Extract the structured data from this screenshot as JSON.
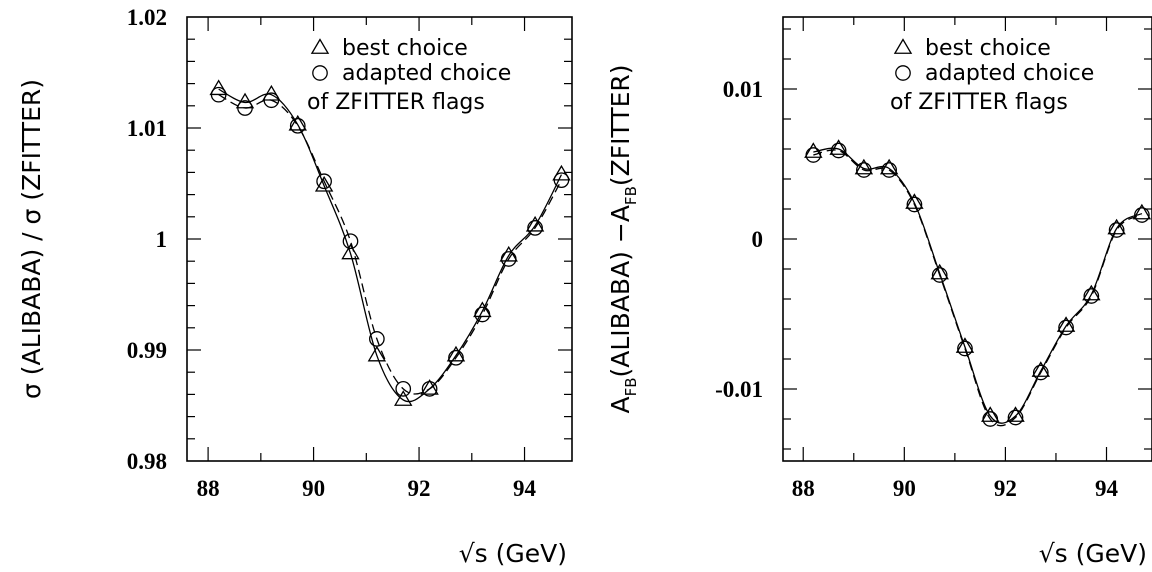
{
  "chart_data": [
    {
      "type": "scatter",
      "xlabel": "√s (GeV)",
      "ylabel": "σ (ALIBABA) / σ (ZFITTER)",
      "xlim": [
        87.6,
        94.9
      ],
      "ylim": [
        0.98,
        1.02
      ],
      "x_ticks": [
        88,
        90,
        92,
        94
      ],
      "x_tick_labels": [
        "88",
        "90",
        "92",
        "94"
      ],
      "y_ticks": [
        0.98,
        0.99,
        1.0,
        1.01,
        1.02
      ],
      "y_tick_labels": [
        "0.98",
        "0.99",
        "1",
        "1.01",
        "1.02"
      ],
      "legend": {
        "position": "top-right",
        "entries": [
          "best choice",
          "adapted choice"
        ],
        "note": "of ZFITTER flags"
      },
      "series": [
        {
          "name": "best choice",
          "marker": "triangle",
          "line": "solid",
          "x": [
            88.2,
            88.7,
            89.2,
            89.7,
            90.2,
            90.7,
            91.2,
            91.7,
            92.2,
            92.7,
            93.2,
            93.7,
            94.2,
            94.7
          ],
          "y": [
            1.0135,
            1.0123,
            1.013,
            1.0103,
            1.0048,
            0.9987,
            0.9895,
            0.9855,
            0.9865,
            0.9895,
            0.9935,
            0.9985,
            1.0012,
            1.0058
          ]
        },
        {
          "name": "adapted choice",
          "marker": "circle",
          "line": "dashed",
          "x": [
            88.2,
            88.7,
            89.2,
            89.7,
            90.2,
            90.7,
            91.2,
            91.7,
            92.2,
            92.7,
            93.2,
            93.7,
            94.2,
            94.7
          ],
          "y": [
            1.013,
            1.0118,
            1.0125,
            1.0102,
            1.0052,
            0.9998,
            0.991,
            0.9865,
            0.9865,
            0.9893,
            0.9932,
            0.9982,
            1.001,
            1.0053
          ]
        }
      ]
    },
    {
      "type": "scatter",
      "xlabel": "√s (GeV)",
      "ylabel_parts": [
        "A",
        "FB",
        "(ALIBABA) −A",
        "FB",
        "(ZFITTER)"
      ],
      "xlim": [
        87.6,
        94.9
      ],
      "ylim": [
        -0.0148,
        0.0148
      ],
      "x_ticks": [
        88,
        90,
        92,
        94
      ],
      "x_tick_labels": [
        "88",
        "90",
        "92",
        "94"
      ],
      "y_ticks": [
        -0.01,
        0.0,
        0.01
      ],
      "y_tick_labels": [
        "-0.01",
        "0",
        "0.01"
      ],
      "legend": {
        "position": "top-right",
        "entries": [
          "best choice",
          "adapted choice"
        ],
        "note": "of ZFITTER flags"
      },
      "series": [
        {
          "name": "best choice",
          "marker": "triangle",
          "line": "solid",
          "x": [
            88.2,
            88.7,
            89.2,
            89.7,
            90.2,
            90.7,
            91.2,
            91.7,
            92.2,
            92.7,
            93.2,
            93.7,
            94.2,
            94.7
          ],
          "y": [
            0.0058,
            0.006,
            0.0047,
            0.0047,
            0.0024,
            -0.0023,
            -0.0072,
            -0.0118,
            -0.0118,
            -0.0088,
            -0.0058,
            -0.0037,
            0.0007,
            0.0017
          ]
        },
        {
          "name": "adapted choice",
          "marker": "circle",
          "line": "dashed",
          "x": [
            88.2,
            88.7,
            89.2,
            89.7,
            90.2,
            90.7,
            91.2,
            91.7,
            92.2,
            92.7,
            93.2,
            93.7,
            94.2,
            94.7
          ],
          "y": [
            0.0056,
            0.0059,
            0.0046,
            0.0046,
            0.0023,
            -0.0024,
            -0.0073,
            -0.012,
            -0.0119,
            -0.0089,
            -0.0059,
            -0.0038,
            0.0006,
            0.0016
          ]
        }
      ]
    }
  ]
}
